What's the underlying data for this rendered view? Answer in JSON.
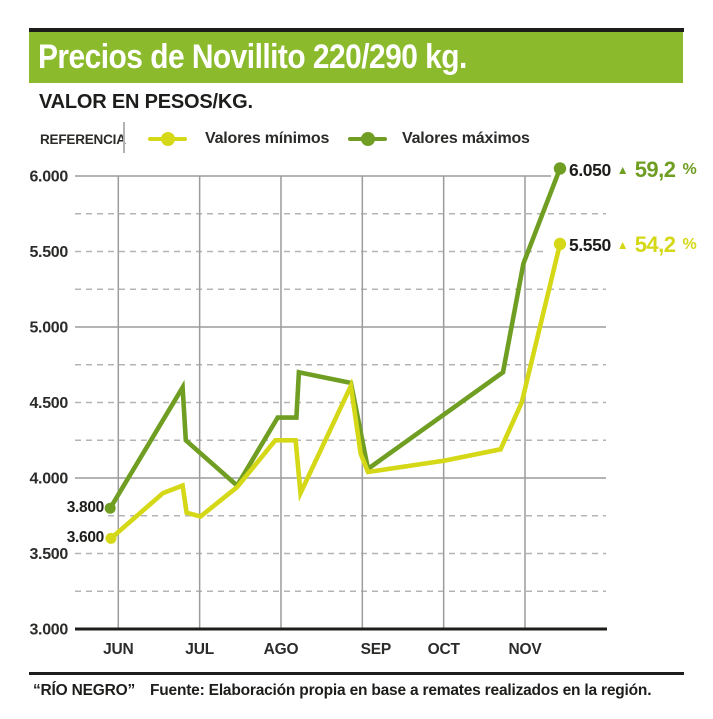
{
  "header": {
    "title": "Precios de Novillito 220/290 kg."
  },
  "subtitle": "VALOR EN PESOS/KG.",
  "legend": {
    "label": "REFERENCIA",
    "items": [
      {
        "label": "Valores mínimos"
      },
      {
        "label": "Valores máximos"
      }
    ]
  },
  "colors": {
    "header_green": "#8cba2d",
    "line_min_yellow": "#d5d816",
    "line_max_green": "#6f9e23",
    "grid_solid": "#9c9c9c",
    "grid_dashed": "#b4b4b4",
    "axis_black": "#1d1d1b",
    "text_dark": "#2b2b2a"
  },
  "chart_data": {
    "type": "line",
    "title": "Precios de Novillito 220/290 kg.",
    "ylabel": "VALOR EN PESOS/KG.",
    "x_unit": "months (JUN=0 … NOV=5, fractional = auction dates within month)",
    "x_tick_labels": [
      "JUN",
      "JUL",
      "AGO",
      "SEP",
      "OCT",
      "NOV"
    ],
    "y_tick_labels": [
      "6.000",
      "5.500",
      "5.000",
      "4.500",
      "4.000",
      "3.500",
      "3.000"
    ],
    "y_tick_values": [
      6000,
      5500,
      5000,
      4500,
      4000,
      3500,
      3000
    ],
    "ylim": [
      3000,
      6000
    ],
    "grid": {
      "solid_values": [
        6000,
        5000,
        4000
      ],
      "dashed_values": [
        5750,
        5500,
        5250,
        4750,
        4500,
        4250,
        3750,
        3500,
        3250
      ],
      "vertical_at_months": true,
      "baseline_value": 3000
    },
    "legend_position": "top",
    "series": [
      {
        "name": "Valores mínimos",
        "color": "#d5d816",
        "points": [
          [
            -0.09,
            3600
          ],
          [
            0.55,
            3900
          ],
          [
            0.79,
            3950
          ],
          [
            0.84,
            3770
          ],
          [
            1.01,
            3745
          ],
          [
            1.46,
            3940
          ],
          [
            1.93,
            4250
          ],
          [
            2.18,
            4250
          ],
          [
            2.24,
            3900
          ],
          [
            2.86,
            4610
          ],
          [
            2.98,
            4160
          ],
          [
            3.07,
            4040
          ],
          [
            4.01,
            4115
          ],
          [
            4.7,
            4190
          ],
          [
            4.96,
            4500
          ],
          [
            5.43,
            5550
          ]
        ],
        "start_label": "3.600",
        "end_label": "5.550",
        "pct_change": "▲ 54,2 %"
      },
      {
        "name": "Valores máximos",
        "color": "#6f9e23",
        "points": [
          [
            -0.1,
            3800
          ],
          [
            0.79,
            4600
          ],
          [
            0.83,
            4250
          ],
          [
            1.46,
            3950
          ],
          [
            1.96,
            4400
          ],
          [
            2.19,
            4400
          ],
          [
            2.22,
            4700
          ],
          [
            2.86,
            4630
          ],
          [
            3.07,
            4060
          ],
          [
            4.73,
            4700
          ],
          [
            4.98,
            5420
          ],
          [
            5.43,
            6050
          ]
        ],
        "start_label": "3.800",
        "end_label": "6.050",
        "pct_change": "▲ 59,2 %"
      }
    ]
  },
  "callouts": {
    "max_start": "3.800",
    "min_start": "3.600",
    "max": {
      "value": "6.050",
      "arrow": "▲",
      "pct": "59,2",
      "pct_sign": "%"
    },
    "min": {
      "value": "5.550",
      "arrow": "▲",
      "pct": "54,2",
      "pct_sign": "%"
    }
  },
  "footer": {
    "brand": "“RÍO NEGRO”",
    "source": "Fuente: Elaboración propia en base a remates realizados en la región."
  }
}
